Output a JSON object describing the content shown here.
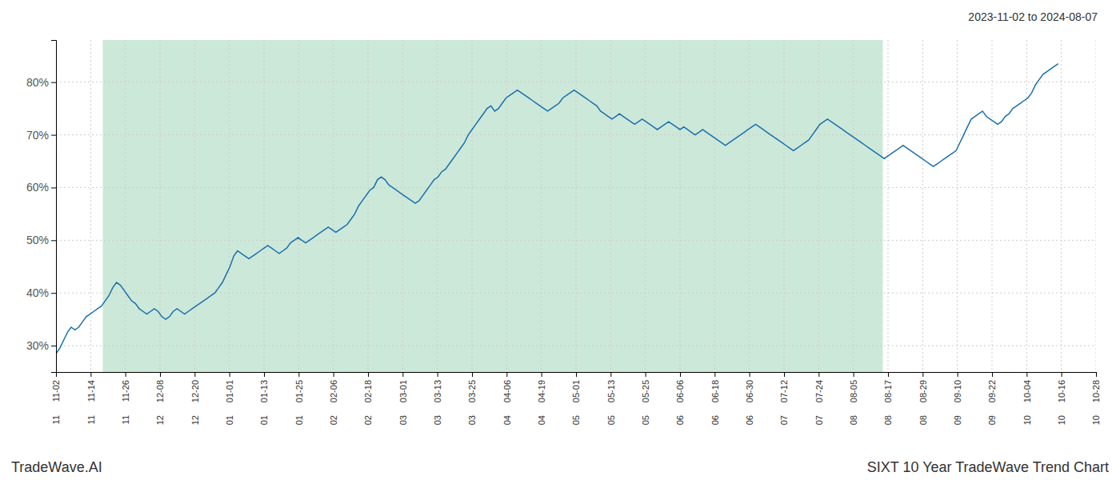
{
  "chart_data": {
    "type": "line",
    "title": "SIXT 10 Year TradeWave Trend Chart",
    "subtitle": "2023-11-02 to 2024-08-07",
    "annotations": [
      "TradeWave.AI"
    ],
    "color": "#1a6faf",
    "grid": true,
    "shaded_region": {
      "start": 12.375,
      "end": 218.625,
      "color": "#cce8d8"
    },
    "xlim": [
      0,
      275
    ],
    "xticks": [
      {
        "value": 0,
        "label": "11-02"
      },
      {
        "value": 9.166666666666666,
        "label": "11-14"
      },
      {
        "value": 18.333333333333332,
        "label": "11-26"
      },
      {
        "value": 27.5,
        "label": "12-08"
      },
      {
        "value": 36.666666666666664,
        "label": "12-20"
      },
      {
        "value": 45.83333333333333,
        "label": "01-01"
      },
      {
        "value": 55,
        "label": "01-13"
      },
      {
        "value": 64.16666666666666,
        "label": "01-25"
      },
      {
        "value": 73.33333333333333,
        "label": "02-06"
      },
      {
        "value": 82.5,
        "label": "02-18"
      },
      {
        "value": 91.66666666666666,
        "label": "03-01"
      },
      {
        "value": 100.83333333333333,
        "label": "03-13"
      },
      {
        "value": 110,
        "label": "03-25"
      },
      {
        "value": 119.16666666666666,
        "label": "04-06"
      },
      {
        "value": 128.33333333333331,
        "label": "04-19"
      },
      {
        "value": 137.5,
        "label": "05-01"
      },
      {
        "value": 146.66666666666666,
        "label": "05-13"
      },
      {
        "value": 155.83333333333331,
        "label": "05-25"
      },
      {
        "value": 165,
        "label": "06-06"
      },
      {
        "value": 174.16666666666666,
        "label": "06-18"
      },
      {
        "value": 183.33333333333331,
        "label": "06-30"
      },
      {
        "value": 192.5,
        "label": "07-12"
      },
      {
        "value": 201.66666666666666,
        "label": "07-24"
      },
      {
        "value": 210.83333333333331,
        "label": "08-05"
      },
      {
        "value": 220,
        "label": "08-17"
      },
      {
        "value": 229.16666666666666,
        "label": "08-29"
      },
      {
        "value": 238.33333333333331,
        "label": "09-10"
      },
      {
        "value": 247.5,
        "label": "09-22"
      },
      {
        "value": 256.66666666666663,
        "label": "10-04"
      },
      {
        "value": 265.8333333333333,
        "label": "10-16"
      },
      {
        "value": 275,
        "label": "10-28"
      }
    ],
    "x_tick_sublabels": [
      "11",
      "11",
      "11",
      "12",
      "12",
      "01",
      "01",
      "01",
      "02",
      "02",
      "03",
      "03",
      "03",
      "04",
      "04",
      "05",
      "05",
      "05",
      "06",
      "06",
      "06",
      "07",
      "07",
      "08",
      "08",
      "08",
      "09",
      "09",
      "10",
      "10",
      "10"
    ],
    "ylim": [
      25,
      88
    ],
    "yticks": [
      {
        "value": 30,
        "label": "30%"
      },
      {
        "value": 40,
        "label": "40%"
      },
      {
        "value": 50,
        "label": "50%"
      },
      {
        "value": 60,
        "label": "60%"
      },
      {
        "value": 70,
        "label": "70%"
      },
      {
        "value": 80,
        "label": "80%"
      }
    ],
    "values": [
      28.5,
      29.5,
      31.0,
      32.5,
      33.5,
      33.0,
      33.5,
      34.5,
      35.5,
      36.0,
      36.5,
      37.0,
      37.5,
      38.5,
      39.5,
      41.0,
      42.0,
      41.5,
      40.5,
      39.5,
      38.5,
      38.0,
      37.0,
      36.5,
      36.0,
      36.5,
      37.0,
      36.5,
      35.5,
      35.0,
      35.5,
      36.5,
      37.0,
      36.5,
      36.0,
      36.5,
      37.0,
      37.5,
      38.0,
      38.5,
      39.0,
      39.5,
      40.0,
      41.0,
      42.0,
      43.5,
      45.0,
      47.0,
      48.0,
      47.5,
      47.0,
      46.5,
      47.0,
      47.5,
      48.0,
      48.5,
      49.0,
      48.5,
      48.0,
      47.5,
      48.0,
      48.5,
      49.5,
      50.0,
      50.5,
      50.0,
      49.5,
      50.0,
      50.5,
      51.0,
      51.5,
      52.0,
      52.5,
      52.0,
      51.5,
      52.0,
      52.5,
      53.0,
      54.0,
      55.0,
      56.5,
      57.5,
      58.5,
      59.5,
      60.0,
      61.5,
      62.0,
      61.5,
      60.5,
      60.0,
      59.5,
      59.0,
      58.5,
      58.0,
      57.5,
      57.0,
      57.5,
      58.5,
      59.5,
      60.5,
      61.5,
      62.0,
      63.0,
      63.5,
      64.5,
      65.5,
      66.5,
      67.5,
      68.5,
      70.0,
      71.0,
      72.0,
      73.0,
      74.0,
      75.0,
      75.5,
      74.5,
      75.0,
      76.0,
      77.0,
      77.5,
      78.0,
      78.5,
      78.0,
      77.5,
      77.0,
      76.5,
      76.0,
      75.5,
      75.0,
      74.5,
      75.0,
      75.5,
      76.0,
      77.0,
      77.5,
      78.0,
      78.5,
      78.0,
      77.5,
      77.0,
      76.5,
      76.0,
      75.5,
      74.5,
      74.0,
      73.5,
      73.0,
      73.5,
      74.0,
      73.5,
      73.0,
      72.5,
      72.0,
      72.5,
      73.0,
      72.5,
      72.0,
      71.5,
      71.0,
      71.5,
      72.0,
      72.5,
      72.0,
      71.5,
      71.0,
      71.5,
      71.0,
      70.5,
      70.0,
      70.5,
      71.0,
      70.5,
      70.0,
      69.5,
      69.0,
      68.5,
      68.0,
      68.5,
      69.0,
      69.5,
      70.0,
      70.5,
      71.0,
      71.5,
      72.0,
      71.5,
      71.0,
      70.5,
      70.0,
      69.5,
      69.0,
      68.5,
      68.0,
      67.5,
      67.0,
      67.5,
      68.0,
      68.5,
      69.0,
      70.0,
      71.0,
      72.0,
      72.5,
      73.0,
      72.5,
      72.0,
      71.5,
      71.0,
      70.5,
      70.0,
      69.5,
      69.0,
      68.5,
      68.0,
      67.5,
      67.0,
      66.5,
      66.0,
      65.5,
      66.0,
      66.5,
      67.0,
      67.5,
      68.0,
      67.5,
      67.0,
      66.5,
      66.0,
      65.5,
      65.0,
      64.5,
      64.0,
      64.5,
      65.0,
      65.5,
      66.0,
      66.5,
      67.0,
      68.5,
      70.0,
      71.5,
      73.0,
      73.5,
      74.0,
      74.5,
      73.5,
      73.0,
      72.5,
      72.0,
      72.5,
      73.5,
      74.0,
      75.0,
      75.5,
      76.0,
      76.5,
      77.0,
      78.0,
      79.5,
      80.5,
      81.5,
      82.0,
      82.5,
      83.0,
      83.5
    ]
  }
}
